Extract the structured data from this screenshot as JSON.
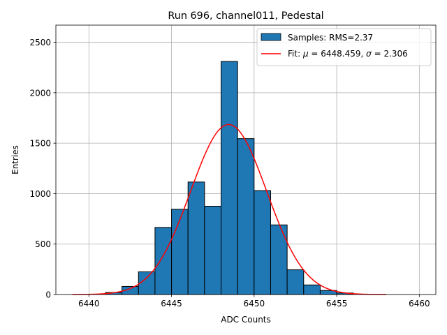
{
  "chart_data": {
    "type": "bar",
    "title": "Run 696, channel011, Pedestal",
    "xlabel": "ADC Counts",
    "ylabel": "Entries",
    "xlim": [
      6438.0,
      6461.0
    ],
    "ylim": [
      0,
      2670
    ],
    "xticks": [
      6440,
      6445,
      6450,
      6455,
      6460
    ],
    "yticks": [
      0,
      500,
      1000,
      1500,
      2000,
      2500
    ],
    "grid": true,
    "legend_position": "top-right",
    "bin_width": 1,
    "bins": [
      6441,
      6442,
      6443,
      6444,
      6445,
      6446,
      6447,
      6448,
      6449,
      6450,
      6451,
      6452,
      6453,
      6454,
      6455
    ],
    "values": [
      20,
      80,
      225,
      665,
      845,
      1115,
      875,
      2310,
      1545,
      1030,
      690,
      245,
      95,
      40,
      15
    ],
    "histogram_color": "#1f77b4",
    "fit": {
      "type": "gaussian",
      "mu": 6448.459,
      "sigma": 2.306,
      "amplitude": 1685,
      "x_range": [
        6439,
        6458
      ],
      "color": "#ff0000"
    },
    "legend": [
      {
        "label": "Samples: RMS=2.37",
        "kind": "patch",
        "color": "#1f77b4"
      },
      {
        "label_prefix": "Fit: ",
        "mu_symbol": "μ",
        "mu_text": " = 6448.459, ",
        "sigma_symbol": "σ",
        "sigma_text": " = 2.306",
        "kind": "line",
        "color": "#ff0000"
      }
    ]
  }
}
